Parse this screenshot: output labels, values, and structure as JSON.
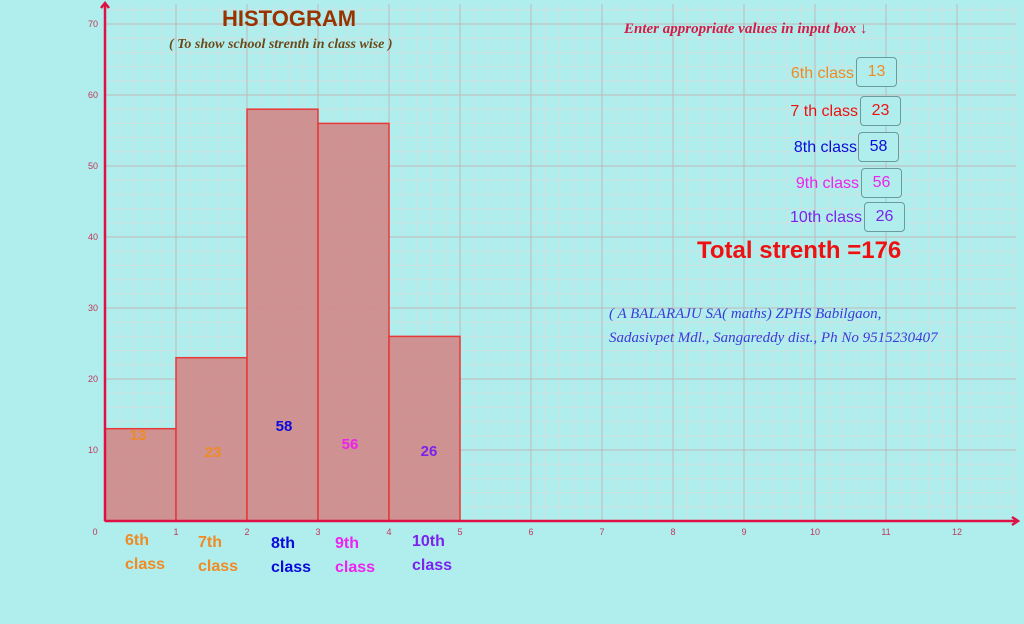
{
  "header": {
    "title": "HISTOGRAM",
    "subtitle": "( To show school strenth in class wise )"
  },
  "inputs": {
    "instruction": "Enter appropriate values in input box ↓",
    "rows": [
      {
        "label": "6th class",
        "value": "13",
        "color": "#f08a24"
      },
      {
        "label": "7 th class",
        "value": "23",
        "color": "#ee1111"
      },
      {
        "label": "8th class",
        "value": "58",
        "color": "#0b0bd9"
      },
      {
        "label": "9th class",
        "value": "56",
        "color": "#ee22ee"
      },
      {
        "label": "10th class",
        "value": "26",
        "color": "#7a22ee"
      }
    ]
  },
  "total": {
    "text": "Total strenth  =176"
  },
  "credit": {
    "line1": "( A BALARAJU SA( maths) ZPHS Babilgaon,",
    "line2": "Sadasivpet Mdl., Sangareddy dist., Ph No 9515230407"
  },
  "colors": {
    "background": "#b0eeee",
    "axis": "#dd1144",
    "bar_fill": "#d08a8a",
    "bar_stroke": "#e83838",
    "grid_major": "#c0b8b8",
    "grid_minor": "#cfe0e0",
    "tick_label": "#c2355a"
  },
  "chart_data": {
    "type": "bar",
    "title": "HISTOGRAM",
    "subtitle": "( To show school strenth in class wise )",
    "categories": [
      "6th class",
      "7th class",
      "8th class",
      "9th class",
      "10th class"
    ],
    "category_colors": [
      "#f08a24",
      "#f08a24",
      "#0b0bd9",
      "#ee22ee",
      "#7a22ee"
    ],
    "value_label_colors": [
      "#f08a24",
      "#f08a24",
      "#0b0bd9",
      "#ee22ee",
      "#7a22ee"
    ],
    "bin_edges": [
      0,
      1,
      2,
      3,
      4,
      5
    ],
    "values": [
      13,
      23,
      58,
      56,
      26
    ],
    "total": 176,
    "xlabel": "",
    "ylabel": "",
    "xlim": [
      0,
      13
    ],
    "ylim": [
      0,
      72
    ],
    "x_ticks": [
      "0",
      "1",
      "2",
      "3",
      "4",
      "5",
      "6",
      "7",
      "8",
      "9",
      "10",
      "11",
      "12"
    ],
    "y_ticks": [
      "10",
      "20",
      "30",
      "40",
      "50",
      "60",
      "70"
    ],
    "grid": true,
    "legend": null
  }
}
